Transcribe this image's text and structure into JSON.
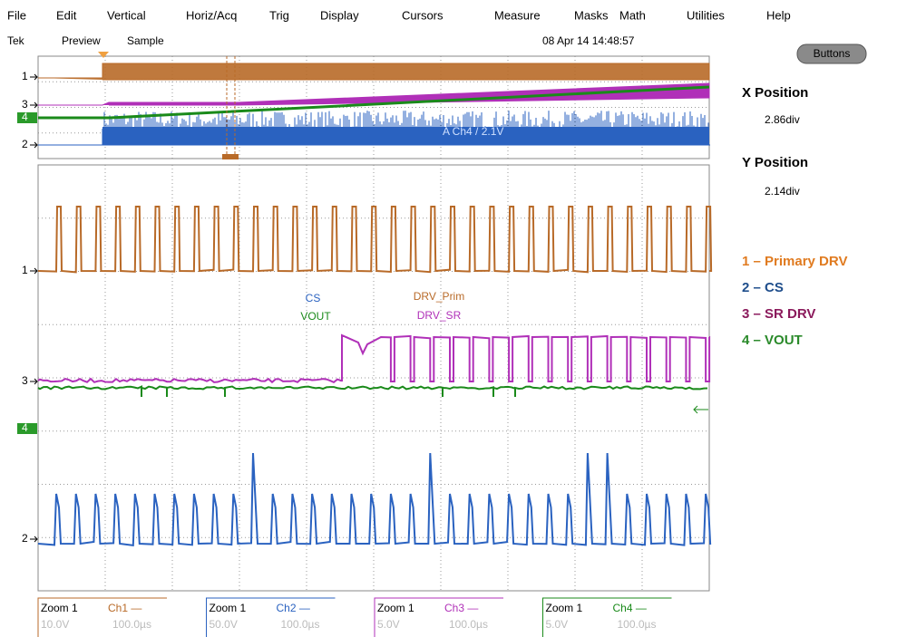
{
  "menu": [
    "File",
    "Edit",
    "Vertical",
    "Horiz/Acq",
    "Trig",
    "Display",
    "Cursors",
    "Measure",
    "Masks",
    "Math",
    "Utilities",
    "Help"
  ],
  "status": {
    "brand": "Tek",
    "mode": "Preview",
    "acquisition": "Sample",
    "datetime": "08 Apr 14 14:48:57"
  },
  "button": "Buttons",
  "panel": {
    "x_label": "X Position",
    "x_value": "2.86div",
    "y_label": "Y Position",
    "y_value": "2.14div"
  },
  "legend": [
    {
      "text": "1 – Primary DRV",
      "color": "#e07b20"
    },
    {
      "text": "2 – CS",
      "color": "#1f4e8c"
    },
    {
      "text": "3 – SR DRV",
      "color": "#8b1a5c"
    },
    {
      "text": "4 – VOUT",
      "color": "#2a8a2a"
    }
  ],
  "overview_markers": [
    "1",
    "3",
    "4",
    "2"
  ],
  "main_markers": [
    "1",
    "3",
    "4",
    "2"
  ],
  "overview_trigger": "A Ch4 / 2.1V",
  "waveform_labels": [
    {
      "text": "CS",
      "color": "#2a62c0"
    },
    {
      "text": "VOUT",
      "color": "#1a8a1a"
    },
    {
      "text": "DRV_Prim",
      "color": "#b86a28"
    },
    {
      "text": "DRV_SR",
      "color": "#b030b8"
    }
  ],
  "readouts": [
    {
      "zoom": "Zoom 1",
      "channel": "Ch1 —",
      "scale": "10.0V",
      "time": "100.0µs",
      "color": "#b86a28"
    },
    {
      "zoom": "Zoom 1",
      "channel": "Ch2 —",
      "scale": "50.0V",
      "time": "100.0µs",
      "color": "#2a62c0"
    },
    {
      "zoom": "Zoom 1",
      "channel": "Ch3 —",
      "scale": "5.0V",
      "time": "100.0µs",
      "color": "#b030b8"
    },
    {
      "zoom": "Zoom 1",
      "channel": "Ch4 —",
      "scale": "5.0V",
      "time": "100.0µs",
      "color": "#1a8a1a"
    }
  ]
}
